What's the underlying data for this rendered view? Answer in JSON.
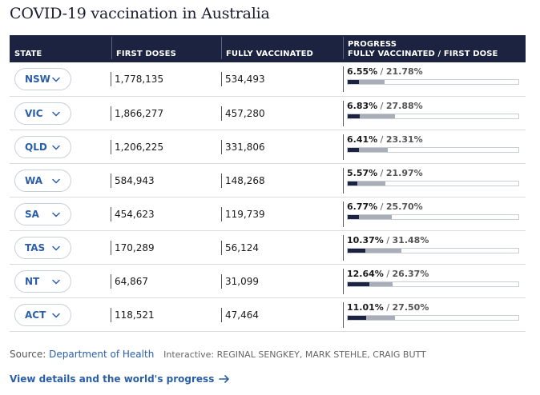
{
  "title": "COVID-19 vaccination in Australia",
  "headers": {
    "state": "STATE",
    "first_doses": "FIRST DOSES",
    "fully_vaccinated": "FULLY VACCINATED",
    "progress_line1": "PROGRESS",
    "progress_line2": "FULLY VACCINATED / FIRST DOSE"
  },
  "rows": [
    {
      "state": "NSW",
      "first_doses": "1,778,135",
      "fully": "534,493",
      "pct_full": "6.55%",
      "pct_first": "21.78%",
      "frac_full": 0.0655,
      "frac_first": 0.2178
    },
    {
      "state": "VIC",
      "first_doses": "1,866,277",
      "fully": "457,280",
      "pct_full": "6.83%",
      "pct_first": "27.88%",
      "frac_full": 0.0683,
      "frac_first": 0.2788
    },
    {
      "state": "QLD",
      "first_doses": "1,206,225",
      "fully": "331,806",
      "pct_full": "6.41%",
      "pct_first": "23.31%",
      "frac_full": 0.0641,
      "frac_first": 0.2331
    },
    {
      "state": "WA",
      "first_doses": "584,943",
      "fully": "148,268",
      "pct_full": "5.57%",
      "pct_first": "21.97%",
      "frac_full": 0.0557,
      "frac_first": 0.2197
    },
    {
      "state": "SA",
      "first_doses": "454,623",
      "fully": "119,739",
      "pct_full": "6.77%",
      "pct_first": "25.70%",
      "frac_full": 0.0677,
      "frac_first": 0.257
    },
    {
      "state": "TAS",
      "first_doses": "170,289",
      "fully": "56,124",
      "pct_full": "10.37%",
      "pct_first": "31.48%",
      "frac_full": 0.1037,
      "frac_first": 0.3148
    },
    {
      "state": "NT",
      "first_doses": "64,867",
      "fully": "31,099",
      "pct_full": "12.64%",
      "pct_first": "26.37%",
      "frac_full": 0.1264,
      "frac_first": 0.2637
    },
    {
      "state": "ACT",
      "first_doses": "118,521",
      "fully": "47,464",
      "pct_full": "11.01%",
      "pct_first": "27.50%",
      "frac_full": 0.1101,
      "frac_first": 0.275
    }
  ],
  "footer": {
    "source_label": "Source:",
    "source_link": "Department of Health",
    "credits": "Interactive: REGINAL SENGKEY, MARK STEHLE, CRAIG BUTT",
    "more_link": "View details and the world's progress"
  },
  "colors": {
    "header_bg": "#1b2340",
    "link": "#2a5fa8",
    "bar_full": "#1b2340",
    "bar_first": "#a8adb8"
  },
  "icons": {
    "dropdown": "chevron-down-icon",
    "more": "arrow-right-icon"
  }
}
